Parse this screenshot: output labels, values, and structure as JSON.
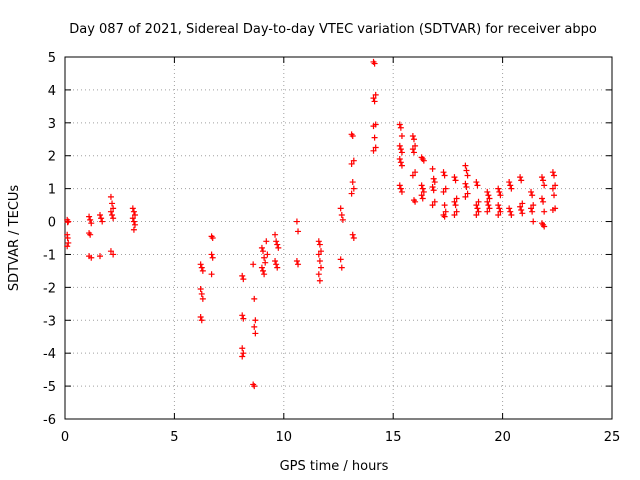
{
  "chart_data": {
    "type": "scatter",
    "title": "Day 087 of 2021, Sidereal Day-to-day VTEC variation (SDTVAR) for receiver abpo",
    "xlabel": "GPS time / hours",
    "ylabel": "SDTVAR / TECUs",
    "xlim": [
      0,
      25
    ],
    "ylim": [
      -6,
      5
    ],
    "xticks": [
      0,
      5,
      10,
      15,
      20,
      25
    ],
    "yticks": [
      -6,
      -5,
      -4,
      -3,
      -2,
      -1,
      0,
      1,
      2,
      3,
      4,
      5
    ],
    "grid": true,
    "marker": "+",
    "color": "#ff0000",
    "points": [
      [
        0.1,
        0.05
      ],
      [
        0.12,
        -0.02
      ],
      [
        0.15,
        0.0
      ],
      [
        0.1,
        -0.4
      ],
      [
        0.12,
        -0.5
      ],
      [
        0.15,
        -0.65
      ],
      [
        0.1,
        -0.75
      ],
      [
        1.1,
        0.15
      ],
      [
        1.15,
        0.05
      ],
      [
        1.2,
        -0.05
      ],
      [
        1.1,
        -0.35
      ],
      [
        1.15,
        -0.4
      ],
      [
        1.1,
        -1.05
      ],
      [
        1.2,
        -1.1
      ],
      [
        1.6,
        0.2
      ],
      [
        1.65,
        0.1
      ],
      [
        1.7,
        0.0
      ],
      [
        1.6,
        -1.05
      ],
      [
        2.1,
        0.75
      ],
      [
        2.15,
        0.55
      ],
      [
        2.2,
        0.4
      ],
      [
        2.1,
        0.3
      ],
      [
        2.15,
        0.2
      ],
      [
        2.2,
        0.1
      ],
      [
        2.1,
        -0.9
      ],
      [
        2.2,
        -1.0
      ],
      [
        3.1,
        0.4
      ],
      [
        3.15,
        0.3
      ],
      [
        3.2,
        0.2
      ],
      [
        3.1,
        0.1
      ],
      [
        3.15,
        0.0
      ],
      [
        3.2,
        -0.1
      ],
      [
        3.15,
        -0.25
      ],
      [
        6.2,
        -1.3
      ],
      [
        6.25,
        -1.4
      ],
      [
        6.3,
        -1.5
      ],
      [
        6.2,
        -2.05
      ],
      [
        6.25,
        -2.2
      ],
      [
        6.3,
        -2.35
      ],
      [
        6.2,
        -2.9
      ],
      [
        6.25,
        -3.0
      ],
      [
        6.7,
        -0.45
      ],
      [
        6.75,
        -0.5
      ],
      [
        6.7,
        -1.0
      ],
      [
        6.75,
        -1.1
      ],
      [
        6.7,
        -1.6
      ],
      [
        8.1,
        -1.65
      ],
      [
        8.15,
        -1.75
      ],
      [
        8.1,
        -2.85
      ],
      [
        8.15,
        -2.95
      ],
      [
        8.1,
        -3.85
      ],
      [
        8.15,
        -4.0
      ],
      [
        8.1,
        -4.1
      ],
      [
        8.6,
        -1.3
      ],
      [
        8.65,
        -2.35
      ],
      [
        8.7,
        -3.0
      ],
      [
        8.65,
        -3.2
      ],
      [
        8.7,
        -3.4
      ],
      [
        8.6,
        -4.95
      ],
      [
        8.65,
        -5.0
      ],
      [
        9.0,
        -0.8
      ],
      [
        9.05,
        -0.9
      ],
      [
        9.1,
        -1.1
      ],
      [
        9.15,
        -1.25
      ],
      [
        9.0,
        -1.4
      ],
      [
        9.05,
        -1.5
      ],
      [
        9.1,
        -1.6
      ],
      [
        9.2,
        -0.6
      ],
      [
        9.25,
        -1.0
      ],
      [
        9.6,
        -0.4
      ],
      [
        9.65,
        -0.6
      ],
      [
        9.7,
        -0.7
      ],
      [
        9.75,
        -0.8
      ],
      [
        9.6,
        -1.2
      ],
      [
        9.65,
        -1.3
      ],
      [
        9.7,
        -1.4
      ],
      [
        10.6,
        0.0
      ],
      [
        10.65,
        -0.3
      ],
      [
        10.6,
        -1.2
      ],
      [
        10.65,
        -1.3
      ],
      [
        11.6,
        -0.6
      ],
      [
        11.65,
        -0.7
      ],
      [
        11.7,
        -0.9
      ],
      [
        11.6,
        -1.0
      ],
      [
        11.65,
        -1.2
      ],
      [
        11.7,
        -1.4
      ],
      [
        11.6,
        -1.6
      ],
      [
        11.65,
        -1.8
      ],
      [
        12.6,
        0.4
      ],
      [
        12.65,
        0.2
      ],
      [
        12.7,
        0.05
      ],
      [
        12.6,
        -1.15
      ],
      [
        12.65,
        -1.4
      ],
      [
        13.1,
        2.65
      ],
      [
        13.15,
        2.6
      ],
      [
        13.2,
        1.85
      ],
      [
        13.1,
        1.75
      ],
      [
        13.15,
        1.2
      ],
      [
        13.2,
        1.0
      ],
      [
        13.1,
        0.85
      ],
      [
        13.15,
        -0.4
      ],
      [
        13.2,
        -0.5
      ],
      [
        14.1,
        4.85
      ],
      [
        14.15,
        4.8
      ],
      [
        14.2,
        3.85
      ],
      [
        14.1,
        3.75
      ],
      [
        14.15,
        3.65
      ],
      [
        14.2,
        2.95
      ],
      [
        14.1,
        2.9
      ],
      [
        14.15,
        2.55
      ],
      [
        14.2,
        2.25
      ],
      [
        14.1,
        2.15
      ],
      [
        15.3,
        2.95
      ],
      [
        15.35,
        2.85
      ],
      [
        15.4,
        2.6
      ],
      [
        15.3,
        2.3
      ],
      [
        15.35,
        2.2
      ],
      [
        15.4,
        2.1
      ],
      [
        15.3,
        1.9
      ],
      [
        15.35,
        1.8
      ],
      [
        15.4,
        1.7
      ],
      [
        15.3,
        1.1
      ],
      [
        15.35,
        1.0
      ],
      [
        15.4,
        0.9
      ],
      [
        15.9,
        2.6
      ],
      [
        15.95,
        2.5
      ],
      [
        16.0,
        2.3
      ],
      [
        15.9,
        2.2
      ],
      [
        15.95,
        2.1
      ],
      [
        16.0,
        1.5
      ],
      [
        15.9,
        1.4
      ],
      [
        15.95,
        0.65
      ],
      [
        16.0,
        0.6
      ],
      [
        16.3,
        1.95
      ],
      [
        16.35,
        1.9
      ],
      [
        16.4,
        1.85
      ],
      [
        16.3,
        1.1
      ],
      [
        16.35,
        1.0
      ],
      [
        16.4,
        0.9
      ],
      [
        16.3,
        0.8
      ],
      [
        16.35,
        0.7
      ],
      [
        16.8,
        1.6
      ],
      [
        16.85,
        1.3
      ],
      [
        16.9,
        1.2
      ],
      [
        16.8,
        1.05
      ],
      [
        16.85,
        0.95
      ],
      [
        16.9,
        0.6
      ],
      [
        16.8,
        0.5
      ],
      [
        17.3,
        1.5
      ],
      [
        17.35,
        1.4
      ],
      [
        17.4,
        1.0
      ],
      [
        17.3,
        0.9
      ],
      [
        17.35,
        0.5
      ],
      [
        17.4,
        0.3
      ],
      [
        17.3,
        0.2
      ],
      [
        17.35,
        0.15
      ],
      [
        17.8,
        1.35
      ],
      [
        17.85,
        1.25
      ],
      [
        17.9,
        0.7
      ],
      [
        17.8,
        0.6
      ],
      [
        17.85,
        0.5
      ],
      [
        17.9,
        0.3
      ],
      [
        17.8,
        0.2
      ],
      [
        18.3,
        1.7
      ],
      [
        18.35,
        1.55
      ],
      [
        18.4,
        1.4
      ],
      [
        18.3,
        1.15
      ],
      [
        18.35,
        1.05
      ],
      [
        18.4,
        0.85
      ],
      [
        18.3,
        0.75
      ],
      [
        18.8,
        1.2
      ],
      [
        18.85,
        1.1
      ],
      [
        18.9,
        0.6
      ],
      [
        18.8,
        0.5
      ],
      [
        18.85,
        0.4
      ],
      [
        18.9,
        0.3
      ],
      [
        18.8,
        0.2
      ],
      [
        19.3,
        0.9
      ],
      [
        19.35,
        0.8
      ],
      [
        19.4,
        0.7
      ],
      [
        19.3,
        0.6
      ],
      [
        19.35,
        0.5
      ],
      [
        19.4,
        0.4
      ],
      [
        19.3,
        0.3
      ],
      [
        19.8,
        1.0
      ],
      [
        19.85,
        0.9
      ],
      [
        19.9,
        0.8
      ],
      [
        19.8,
        0.5
      ],
      [
        19.85,
        0.4
      ],
      [
        19.9,
        0.3
      ],
      [
        19.8,
        0.2
      ],
      [
        20.3,
        1.2
      ],
      [
        20.35,
        1.1
      ],
      [
        20.4,
        1.0
      ],
      [
        20.3,
        0.4
      ],
      [
        20.35,
        0.3
      ],
      [
        20.4,
        0.2
      ],
      [
        20.8,
        1.35
      ],
      [
        20.85,
        1.25
      ],
      [
        20.9,
        0.55
      ],
      [
        20.8,
        0.45
      ],
      [
        20.85,
        0.35
      ],
      [
        20.9,
        0.25
      ],
      [
        21.3,
        0.9
      ],
      [
        21.35,
        0.8
      ],
      [
        21.4,
        0.5
      ],
      [
        21.3,
        0.4
      ],
      [
        21.35,
        0.3
      ],
      [
        21.4,
        0.0
      ],
      [
        21.8,
        1.35
      ],
      [
        21.85,
        1.25
      ],
      [
        21.9,
        1.1
      ],
      [
        21.8,
        0.7
      ],
      [
        21.85,
        0.6
      ],
      [
        21.9,
        0.3
      ],
      [
        21.8,
        -0.05
      ],
      [
        21.85,
        -0.1
      ],
      [
        21.9,
        -0.15
      ],
      [
        22.3,
        1.5
      ],
      [
        22.35,
        1.4
      ],
      [
        22.4,
        1.1
      ],
      [
        22.3,
        1.0
      ],
      [
        22.35,
        0.8
      ],
      [
        22.4,
        0.4
      ],
      [
        22.3,
        0.35
      ]
    ]
  }
}
